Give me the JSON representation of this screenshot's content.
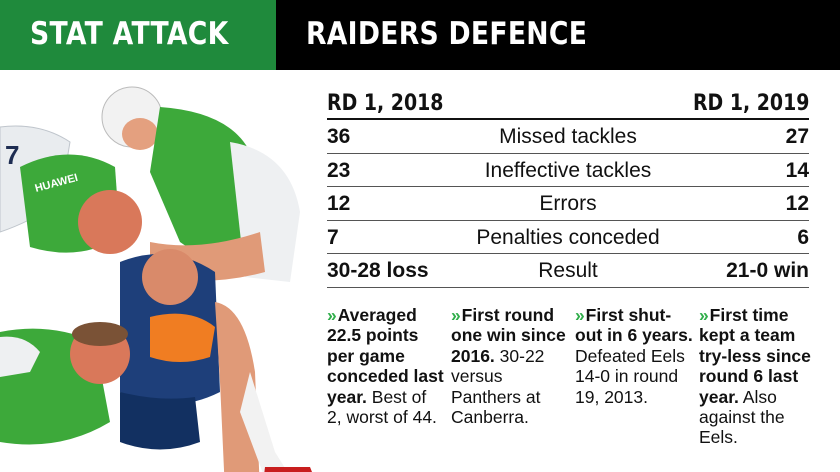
{
  "header": {
    "tag": "STAT ATTACK",
    "title": "RAIDERS DEFENCE"
  },
  "colors": {
    "tag_bg": "#1f8a3c",
    "header_bg": "#000000",
    "chevron": "#2fae4a"
  },
  "table": {
    "left_header": "RD 1, 2018",
    "right_header": "RD 1, 2019",
    "rows": [
      {
        "left": "36",
        "label": "Missed tackles",
        "right": "27"
      },
      {
        "left": "23",
        "label": "Ineffective tackles",
        "right": "14"
      },
      {
        "left": "12",
        "label": "Errors",
        "right": "12"
      },
      {
        "left": "7",
        "label": "Penalties conceded",
        "right": "6"
      },
      {
        "left": "30-28 loss",
        "label": "Result",
        "right": "21-0 win"
      }
    ]
  },
  "notes": [
    {
      "icon": "chevron-right-icon",
      "bold": "Averaged 22.5 points per game conceded last year.",
      "text": " Best of 2, worst of 44."
    },
    {
      "icon": "chevron-right-icon",
      "bold": "First round one win since 2016.",
      "text": " 30-22 versus Panthers at Canberra."
    },
    {
      "icon": "chevron-right-icon",
      "bold": "First shut-out in 6 years.",
      "text": " Defeated Eels 14-0 in round 19, 2013."
    },
    {
      "icon": "chevron-right-icon",
      "bold": "First time kept a team try-less since round 6 last year.",
      "text": " Also against the Eels."
    }
  ],
  "photo": {
    "jersey_text": "HUAWEI"
  }
}
